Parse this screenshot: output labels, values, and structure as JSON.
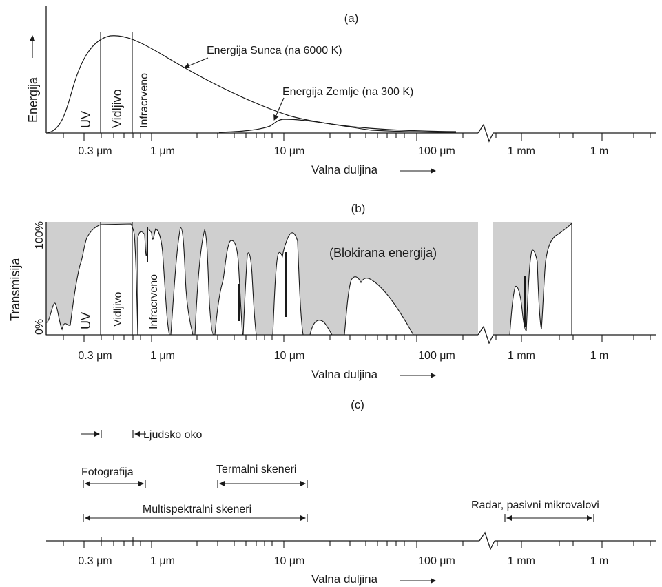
{
  "panels": {
    "a": {
      "title": "(a)",
      "ylabel": "Energija",
      "sun_label": "Energija Sunca (na 6000 K)",
      "earth_label": "Energija Zemlje (na 300 K)",
      "band_uv": "UV",
      "band_vis": "Vidljivo",
      "band_ir": "Infracrveno",
      "xlabel": "Valna duljina"
    },
    "b": {
      "title": "(b)",
      "ylabel": "Transmisija",
      "y_top": "100%",
      "y_bottom": "0%",
      "blocked_label": "(Blokirana energija)",
      "band_uv": "UV",
      "band_vis": "Vidljivo",
      "band_ir": "Infracrveno",
      "xlabel": "Valna duljina"
    },
    "c": {
      "title": "(c)",
      "eye_label": "Ljudsko oko",
      "photo_label": "Fotografija",
      "thermal_label": "Termalni skeneri",
      "multi_label": "Multispektralni skeneri",
      "radar_label": "Radar, pasivni mikrovalovi",
      "xlabel": "Valna duljina"
    }
  },
  "axis_ticks": [
    "0.3 μm",
    "1 μm",
    "10 μm",
    "100 μm",
    "1 mm",
    "1 m"
  ],
  "colors": {
    "blocked": "#cfcfcf",
    "line": "#1a1a1a"
  }
}
